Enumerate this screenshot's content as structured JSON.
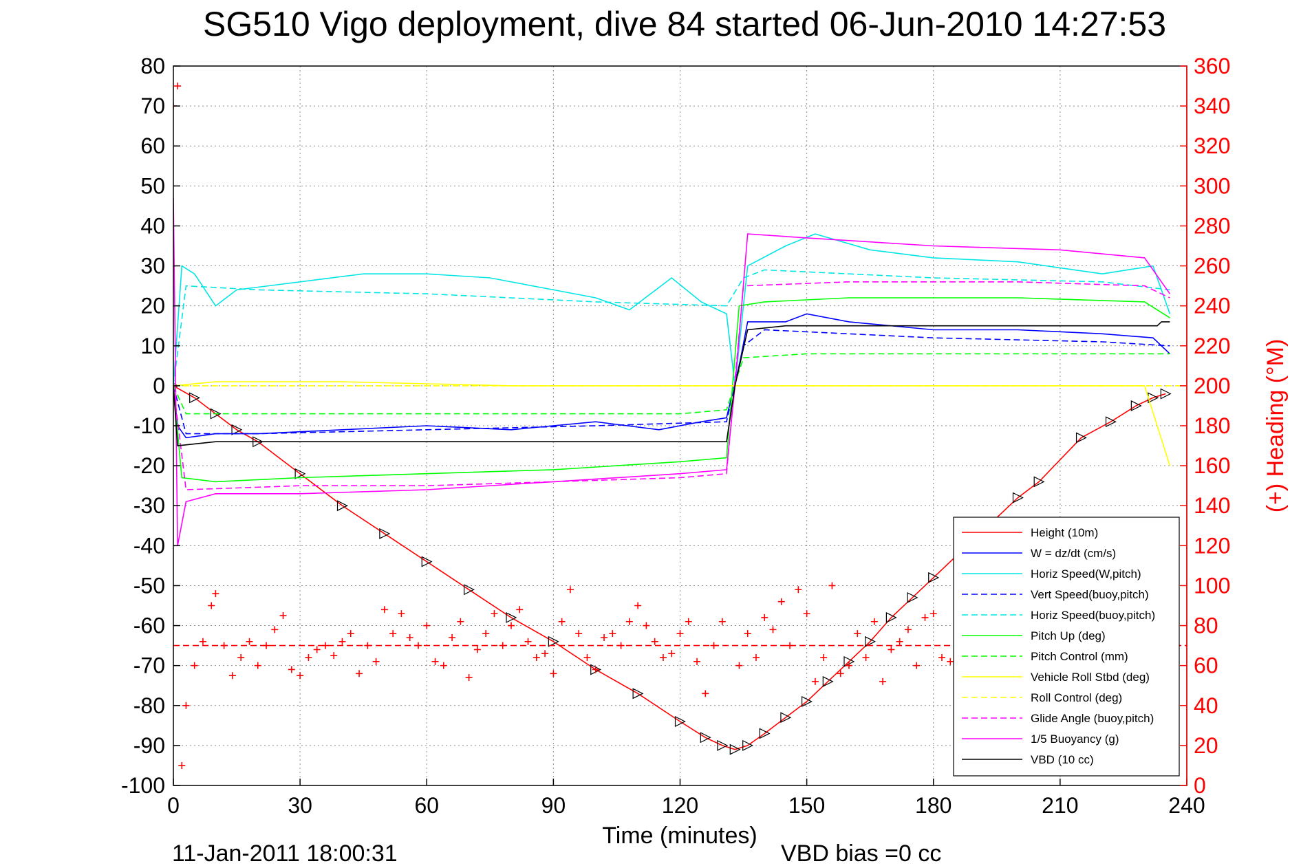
{
  "chart_data": {
    "type": "line",
    "title": "SG510 Vigo deployment, dive 84 started 06-Jun-2010 14:27:53",
    "xlabel": "Time (minutes)",
    "ylabel_right": "(+) Heading (°M)",
    "xlim": [
      0,
      240
    ],
    "ylim": [
      -100,
      80
    ],
    "ylim_right": [
      0,
      360
    ],
    "xticks": [
      "0",
      "30",
      "60",
      "90",
      "120",
      "150",
      "180",
      "210",
      "240"
    ],
    "yticks": [
      "80",
      "70",
      "60",
      "50",
      "40",
      "30",
      "20",
      "10",
      "0",
      "-10",
      "-20",
      "-30",
      "-40",
      "-50",
      "-60",
      "-70",
      "-80",
      "-90",
      "-100"
    ],
    "yticks_right": [
      "360",
      "340",
      "320",
      "300",
      "280",
      "260",
      "240",
      "220",
      "200",
      "180",
      "160",
      "140",
      "120",
      "100",
      "80",
      "60",
      "40",
      "20",
      "0"
    ],
    "grid": true,
    "legend_position": "bottom-right",
    "footer_left": "11-Jan-2011 18:00:31",
    "footer_right": "VBD bias =0 cc",
    "series": [
      {
        "name": "Height (10m)",
        "color": "#ff0000",
        "style": "solid",
        "x": [
          0,
          5,
          10,
          15,
          20,
          30,
          40,
          50,
          60,
          70,
          80,
          90,
          100,
          110,
          120,
          126,
          130,
          133,
          136,
          140,
          145,
          150,
          155,
          160,
          165,
          170,
          175,
          180,
          190,
          200,
          205,
          215,
          222,
          228,
          232,
          235
        ],
        "y": [
          0,
          -3,
          -7,
          -11,
          -14,
          -22,
          -30,
          -37,
          -44,
          -51,
          -58,
          -64,
          -71,
          -77,
          -84,
          -88,
          -90,
          -91,
          -90,
          -87,
          -83,
          -79,
          -74,
          -69,
          -64,
          -58,
          -53,
          -48,
          -38,
          -28,
          -24,
          -13,
          -9,
          -5,
          -3,
          -2
        ]
      },
      {
        "name": "W = dz/dt (cm/s)",
        "color": "#0000ff",
        "style": "solid",
        "x": [
          0,
          1,
          3,
          10,
          20,
          40,
          60,
          80,
          100,
          115,
          125,
          131,
          134,
          136,
          145,
          150,
          160,
          180,
          200,
          220,
          232,
          236
        ],
        "y": [
          0,
          -10,
          -13,
          -12,
          -12,
          -11,
          -10,
          -11,
          -9,
          -11,
          -9,
          -8,
          5,
          16,
          16,
          18,
          16,
          14,
          14,
          13,
          12,
          8
        ]
      },
      {
        "name": "Horiz Speed(W,pitch)",
        "color": "#00e5e5",
        "style": "solid",
        "x": [
          0,
          2,
          5,
          10,
          15,
          30,
          45,
          60,
          75,
          90,
          100,
          108,
          118,
          125,
          131,
          133,
          136,
          145,
          152,
          165,
          180,
          200,
          220,
          232,
          236
        ],
        "y": [
          0,
          30,
          28,
          20,
          24,
          26,
          28,
          28,
          27,
          24,
          22,
          19,
          27,
          21,
          18,
          0,
          30,
          35,
          38,
          34,
          32,
          31,
          28,
          30,
          18
        ]
      },
      {
        "name": "Vert Speed(buoy,pitch)",
        "color": "#0000ff",
        "style": "dashed",
        "x": [
          0,
          3,
          20,
          60,
          100,
          131,
          135,
          140,
          180,
          220,
          236
        ],
        "y": [
          0,
          -12,
          -12,
          -11,
          -10,
          -9,
          10,
          14,
          12,
          11,
          10
        ]
      },
      {
        "name": "Horiz Speed(buoy,pitch)",
        "color": "#00e5e5",
        "style": "dashed",
        "x": [
          0,
          3,
          20,
          60,
          100,
          131,
          135,
          140,
          180,
          220,
          236
        ],
        "y": [
          0,
          25,
          24,
          23,
          21,
          20,
          27,
          29,
          27,
          26,
          24
        ]
      },
      {
        "name": "Pitch Up (deg)",
        "color": "#00ff00",
        "style": "solid",
        "x": [
          0,
          2,
          10,
          30,
          60,
          90,
          120,
          131,
          134,
          140,
          160,
          200,
          230,
          236
        ],
        "y": [
          0,
          -23,
          -24,
          -23,
          -22,
          -21,
          -19,
          -18,
          20,
          21,
          22,
          22,
          21,
          17
        ]
      },
      {
        "name": "Pitch Control (mm)",
        "color": "#00ff00",
        "style": "dashed",
        "x": [
          0,
          3,
          30,
          60,
          90,
          120,
          131,
          135,
          150,
          200,
          236
        ],
        "y": [
          0,
          -7,
          -7,
          -7,
          -7,
          -7,
          -6,
          7,
          8,
          8,
          8
        ]
      },
      {
        "name": "Vehicle Roll Stbd (deg)",
        "color": "#ffff00",
        "style": "solid",
        "x": [
          0,
          10,
          40,
          80,
          120,
          132,
          134,
          170,
          200,
          230,
          236
        ],
        "y": [
          0,
          1,
          1,
          0,
          0,
          0,
          0,
          0,
          0,
          0,
          -20
        ]
      },
      {
        "name": "Roll Control (deg)",
        "color": "#ffff00",
        "style": "dashed",
        "x": [
          0,
          240
        ],
        "y": [
          0,
          0
        ]
      },
      {
        "name": "Glide Angle (buoy,pitch)",
        "color": "#ff00ff",
        "style": "dashed",
        "x": [
          0,
          3,
          30,
          60,
          90,
          120,
          131,
          135,
          160,
          200,
          230,
          236
        ],
        "y": [
          0,
          -26,
          -25,
          -25,
          -24,
          -23,
          -22,
          25,
          26,
          26,
          25,
          22
        ]
      },
      {
        "name": "1/5 Buoyancy (g)",
        "color": "#ff00ff",
        "style": "solid",
        "x": [
          0,
          1,
          3,
          10,
          30,
          60,
          90,
          120,
          131,
          133,
          136,
          150,
          180,
          210,
          230,
          236
        ],
        "y": [
          47,
          -40,
          -29,
          -27,
          -27,
          -26,
          -24,
          -22,
          -21,
          0,
          38,
          37,
          35,
          34,
          32,
          23
        ]
      },
      {
        "name": "VBD (10 cc)",
        "color": "#000000",
        "style": "solid",
        "x": [
          0,
          1,
          10,
          20,
          60,
          100,
          131,
          133,
          136,
          145,
          200,
          233,
          234,
          236
        ],
        "y": [
          0,
          -15,
          -14,
          -14,
          -14,
          -14,
          -14,
          0,
          14,
          15,
          15,
          15,
          16,
          16
        ]
      },
      {
        "name": "",
        "color": "#ff0000",
        "style": "plus-markers",
        "axis": "right",
        "x": [
          0,
          1,
          2,
          3,
          5,
          7,
          9,
          10,
          12,
          14,
          16,
          18,
          20,
          22,
          24,
          26,
          28,
          30,
          32,
          34,
          36,
          38,
          40,
          42,
          44,
          46,
          48,
          50,
          52,
          54,
          56,
          58,
          60,
          62,
          64,
          66,
          68,
          70,
          72,
          74,
          76,
          78,
          80,
          82,
          84,
          86,
          88,
          90,
          92,
          94,
          96,
          98,
          100,
          102,
          104,
          106,
          108,
          110,
          112,
          114,
          116,
          118,
          120,
          122,
          124,
          126,
          128,
          130,
          134,
          136,
          138,
          140,
          142,
          144,
          146,
          148,
          150,
          152,
          154,
          156,
          158,
          160,
          162,
          164,
          166,
          168,
          170,
          172,
          174,
          176,
          178,
          180,
          182,
          184,
          186
        ],
        "y": [
          340,
          350,
          10,
          40,
          60,
          72,
          90,
          96,
          70,
          55,
          64,
          72,
          60,
          70,
          78,
          85,
          58,
          55,
          64,
          68,
          70,
          65,
          72,
          76,
          56,
          70,
          62,
          88,
          76,
          86,
          74,
          70,
          80,
          62,
          60,
          74,
          82,
          54,
          68,
          76,
          86,
          70,
          80,
          88,
          72,
          64,
          66,
          56,
          82,
          98,
          76,
          64,
          58,
          74,
          76,
          70,
          82,
          90,
          80,
          72,
          64,
          66,
          76,
          82,
          62,
          46,
          70,
          82,
          60,
          76,
          64,
          84,
          78,
          92,
          70,
          98,
          86,
          52,
          64,
          100,
          56,
          60,
          76,
          64,
          82,
          52,
          68,
          72,
          78,
          60,
          84,
          86,
          64,
          62,
          76
        ]
      },
      {
        "name": "",
        "color": "#ff0000",
        "style": "dashed",
        "axis": "right",
        "x": [
          0,
          240
        ],
        "y": [
          70,
          70
        ]
      }
    ]
  }
}
